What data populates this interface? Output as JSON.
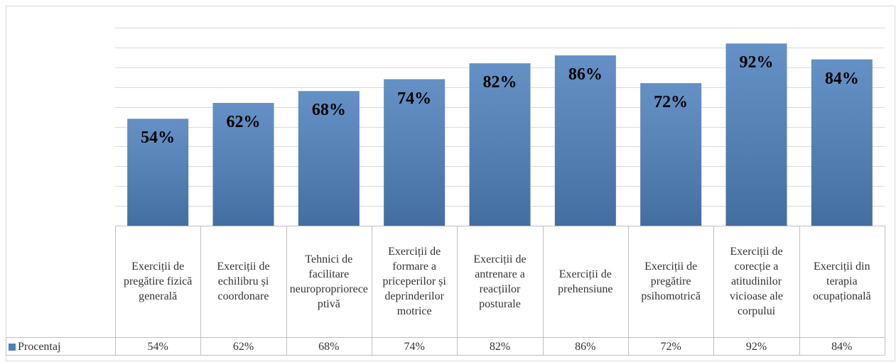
{
  "chart_data": {
    "type": "bar",
    "categories": [
      "Exerciții de pregătire fizică generală",
      "Exerciții de echilibru și coordonare",
      "Tehnici de facilitare neuroproprioreceptivă",
      "Exerciții de formare a priceperilor și deprinderilor motrice",
      "Exerciții de antrenare a reacțiilor posturale",
      "Exerciții de prehensiune",
      "Exerciții de pregătire psihomotrică",
      "Exerciții de corecție a atitudinilor vicioase ale corpului",
      "Exerciții din terapia ocupațională"
    ],
    "series": [
      {
        "name": "Procentaj",
        "color": "#4f81bd",
        "values": [
          54,
          62,
          68,
          74,
          82,
          86,
          72,
          92,
          84
        ],
        "value_labels": [
          "54%",
          "62%",
          "68%",
          "74%",
          "82%",
          "86%",
          "72%",
          "92%",
          "84%"
        ]
      }
    ],
    "ylim": [
      0,
      100
    ],
    "yticks": [
      0,
      10,
      20,
      30,
      40,
      50,
      60,
      70,
      80,
      90,
      100
    ],
    "grid": true
  }
}
